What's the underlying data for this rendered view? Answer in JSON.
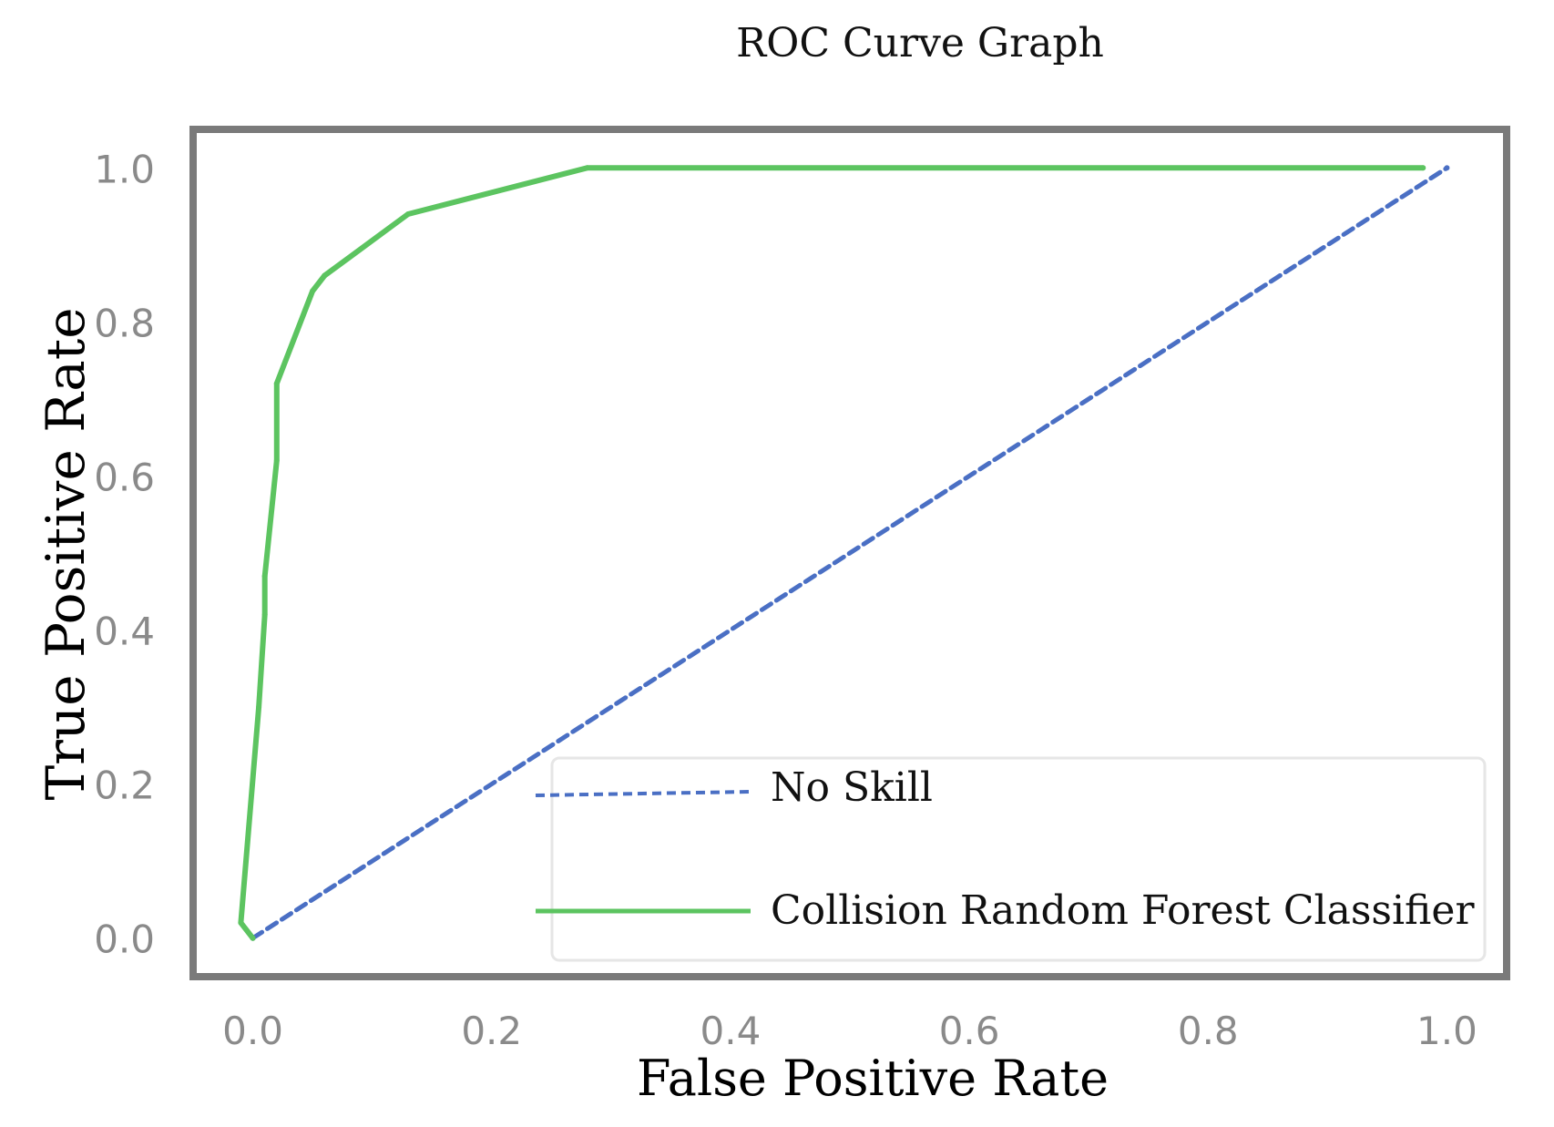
{
  "chart_data": {
    "type": "line",
    "title": "ROC Curve Graph",
    "xlabel": "False Positive Rate",
    "ylabel": "True Positive Rate",
    "xlim": [
      -0.05,
      1.05
    ],
    "ylim": [
      -0.05,
      1.05
    ],
    "x_ticks": [
      0.0,
      0.2,
      0.4,
      0.6,
      0.8,
      1.0
    ],
    "y_ticks": [
      0.0,
      0.2,
      0.4,
      0.6,
      0.8,
      1.0
    ],
    "x_tick_labels": [
      "0.0",
      "0.2",
      "0.4",
      "0.6",
      "0.8",
      "1.0"
    ],
    "y_tick_labels": [
      "0.0",
      "0.2",
      "0.4",
      "0.6",
      "0.8",
      "1.0"
    ],
    "grid": false,
    "legend_position": "bottom-right",
    "series": [
      {
        "name": "No Skill",
        "style": "dashed",
        "color": "#4a6fc4",
        "x": [
          0.0,
          1.0
        ],
        "y": [
          0.0,
          1.0
        ]
      },
      {
        "name": "Collision Random Forest Classifier",
        "style": "solid",
        "color": "#5cc460",
        "x": [
          0.0,
          -0.01,
          0.005,
          0.01,
          0.01,
          0.02,
          0.02,
          0.05,
          0.06,
          0.13,
          0.28,
          0.98
        ],
        "y": [
          0.0,
          0.02,
          0.3,
          0.42,
          0.47,
          0.62,
          0.72,
          0.84,
          0.86,
          0.94,
          1.0,
          1.0
        ]
      }
    ]
  }
}
